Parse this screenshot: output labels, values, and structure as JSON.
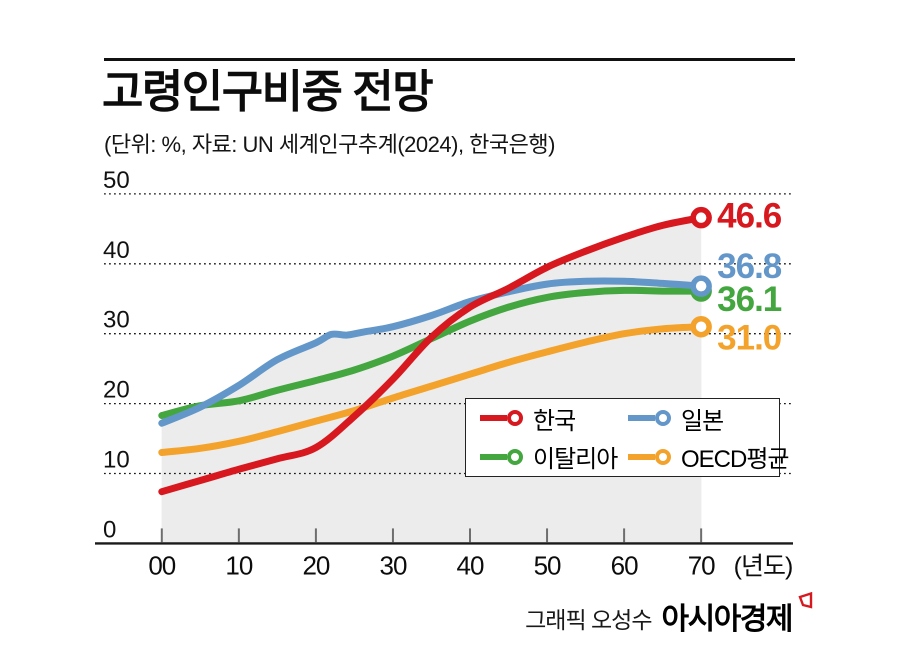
{
  "header": {
    "title": "고령인구비중 전망",
    "subtitle": "(단위: %, 자료: UN 세계인구추계(2024), 한국은행)"
  },
  "credit": {
    "prefix": "그래픽 오성수",
    "brand": "아시아경제"
  },
  "colors": {
    "korea": "#d7181f",
    "japan": "#6397c9",
    "italy": "#43a63f",
    "oecd": "#f3a32b",
    "area": "#ececec",
    "grid": "#1a1a1a",
    "axis": "#1a1a1a",
    "tick": "#6e6e6e",
    "text": "#111111",
    "brand_mark": "#d7181f"
  },
  "chart_data": {
    "type": "line",
    "title": "고령인구비중 전망",
    "unit_note": "(단위: %, 자료: UN 세계인구추계(2024), 한국은행)",
    "ylabel": "%",
    "ylim": [
      0,
      50
    ],
    "yticks": [
      0,
      10,
      20,
      30,
      40,
      50
    ],
    "xticks": [
      {
        "year": 0,
        "label": "00"
      },
      {
        "year": 10,
        "label": "10"
      },
      {
        "year": 20,
        "label": "20"
      },
      {
        "year": 30,
        "label": "30"
      },
      {
        "year": 40,
        "label": "40"
      },
      {
        "year": 50,
        "label": "50"
      },
      {
        "year": 60,
        "label": "60"
      },
      {
        "year": 70,
        "label": "70"
      }
    ],
    "x_unit_label": "(년도)",
    "grid": "horizontal dotted",
    "legend_position": "box inside lower right",
    "area_fill": "light gray under upper envelope of lines, from year 00 to 70",
    "series": [
      {
        "name": "OECD평균",
        "color_key": "oecd",
        "end_label": "31.0",
        "points": [
          [
            0,
            13.0
          ],
          [
            5,
            13.6
          ],
          [
            10,
            14.6
          ],
          [
            15,
            16.0
          ],
          [
            20,
            17.5
          ],
          [
            25,
            19.0
          ],
          [
            30,
            20.8
          ],
          [
            35,
            22.5
          ],
          [
            40,
            24.2
          ],
          [
            45,
            25.9
          ],
          [
            50,
            27.4
          ],
          [
            55,
            28.8
          ],
          [
            60,
            30.0
          ],
          [
            65,
            30.7
          ],
          [
            70,
            31.0
          ]
        ]
      },
      {
        "name": "이탈리아",
        "color_key": "italy",
        "end_label": "36.1",
        "points": [
          [
            0,
            18.3
          ],
          [
            5,
            19.7
          ],
          [
            10,
            20.4
          ],
          [
            15,
            21.9
          ],
          [
            20,
            23.3
          ],
          [
            25,
            24.8
          ],
          [
            30,
            26.8
          ],
          [
            35,
            29.3
          ],
          [
            40,
            31.8
          ],
          [
            45,
            33.8
          ],
          [
            50,
            35.2
          ],
          [
            55,
            35.9
          ],
          [
            60,
            36.2
          ],
          [
            65,
            36.1
          ],
          [
            70,
            36.1
          ]
        ]
      },
      {
        "name": "일본",
        "color_key": "japan",
        "end_label": "36.8",
        "points": [
          [
            0,
            17.2
          ],
          [
            5,
            19.5
          ],
          [
            10,
            22.6
          ],
          [
            15,
            26.3
          ],
          [
            20,
            28.7
          ],
          [
            22,
            29.9
          ],
          [
            24,
            29.8
          ],
          [
            26,
            30.2
          ],
          [
            30,
            31.0
          ],
          [
            35,
            32.6
          ],
          [
            40,
            34.6
          ],
          [
            45,
            36.0
          ],
          [
            50,
            37.1
          ],
          [
            55,
            37.5
          ],
          [
            60,
            37.5
          ],
          [
            65,
            37.2
          ],
          [
            70,
            36.8
          ]
        ]
      },
      {
        "name": "한국",
        "color_key": "korea",
        "end_label": "46.6",
        "points": [
          [
            0,
            7.4
          ],
          [
            5,
            9.0
          ],
          [
            10,
            10.6
          ],
          [
            15,
            12.1
          ],
          [
            20,
            13.7
          ],
          [
            25,
            18.2
          ],
          [
            30,
            23.5
          ],
          [
            35,
            29.5
          ],
          [
            40,
            33.8
          ],
          [
            45,
            36.5
          ],
          [
            50,
            39.5
          ],
          [
            55,
            41.8
          ],
          [
            60,
            43.8
          ],
          [
            65,
            45.5
          ],
          [
            70,
            46.6
          ]
        ]
      }
    ]
  },
  "legend": {
    "items": [
      {
        "label": "한국",
        "color_key": "korea"
      },
      {
        "label": "일본",
        "color_key": "japan"
      },
      {
        "label": "이탈리아",
        "color_key": "italy"
      },
      {
        "label": "OECD평균",
        "color_key": "oecd"
      }
    ]
  }
}
